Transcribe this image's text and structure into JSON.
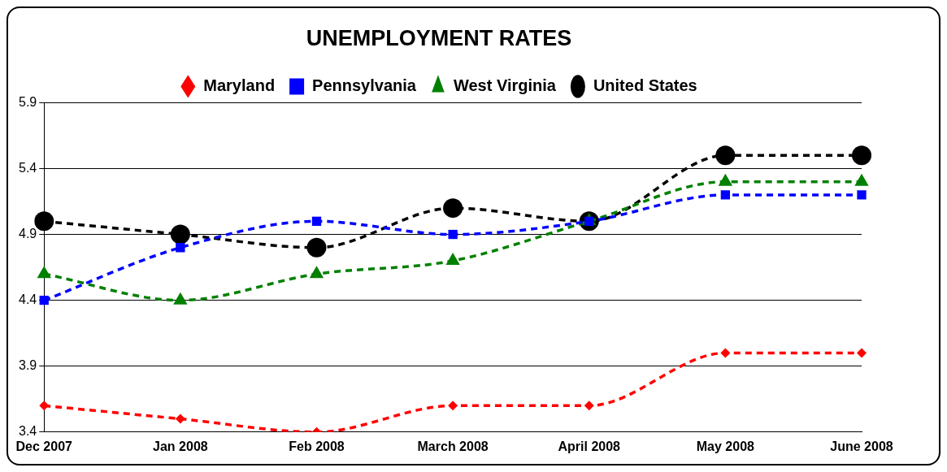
{
  "chart_data": {
    "type": "line",
    "title": "UNEMPLOYMENT RATES",
    "categories": [
      "Dec 2007",
      "Jan 2008",
      "Feb 2008",
      "March 2008",
      "April 2008",
      "May 2008",
      "June 2008"
    ],
    "series": [
      {
        "name": "Maryland",
        "color": "#ff0000",
        "marker": "diamond",
        "values": [
          3.6,
          3.5,
          3.4,
          3.6,
          3.6,
          4.0,
          4.0
        ]
      },
      {
        "name": "Pennsylvania",
        "color": "#0000ff",
        "marker": "square",
        "values": [
          4.4,
          4.8,
          5.0,
          4.9,
          5.0,
          5.2,
          5.2
        ]
      },
      {
        "name": "West Virginia",
        "color": "#008000",
        "marker": "triangle",
        "values": [
          4.6,
          4.4,
          4.6,
          4.7,
          5.0,
          5.3,
          5.3
        ]
      },
      {
        "name": "United States",
        "color": "#000000",
        "marker": "circle",
        "values": [
          5.0,
          4.9,
          4.8,
          5.1,
          5.0,
          5.5,
          5.5
        ]
      }
    ],
    "ylim": [
      3.4,
      5.9
    ],
    "yticks": [
      3.4,
      3.9,
      4.4,
      4.9,
      5.4,
      5.9
    ],
    "grid": "y",
    "legend": "top",
    "line_style": "dashed"
  }
}
